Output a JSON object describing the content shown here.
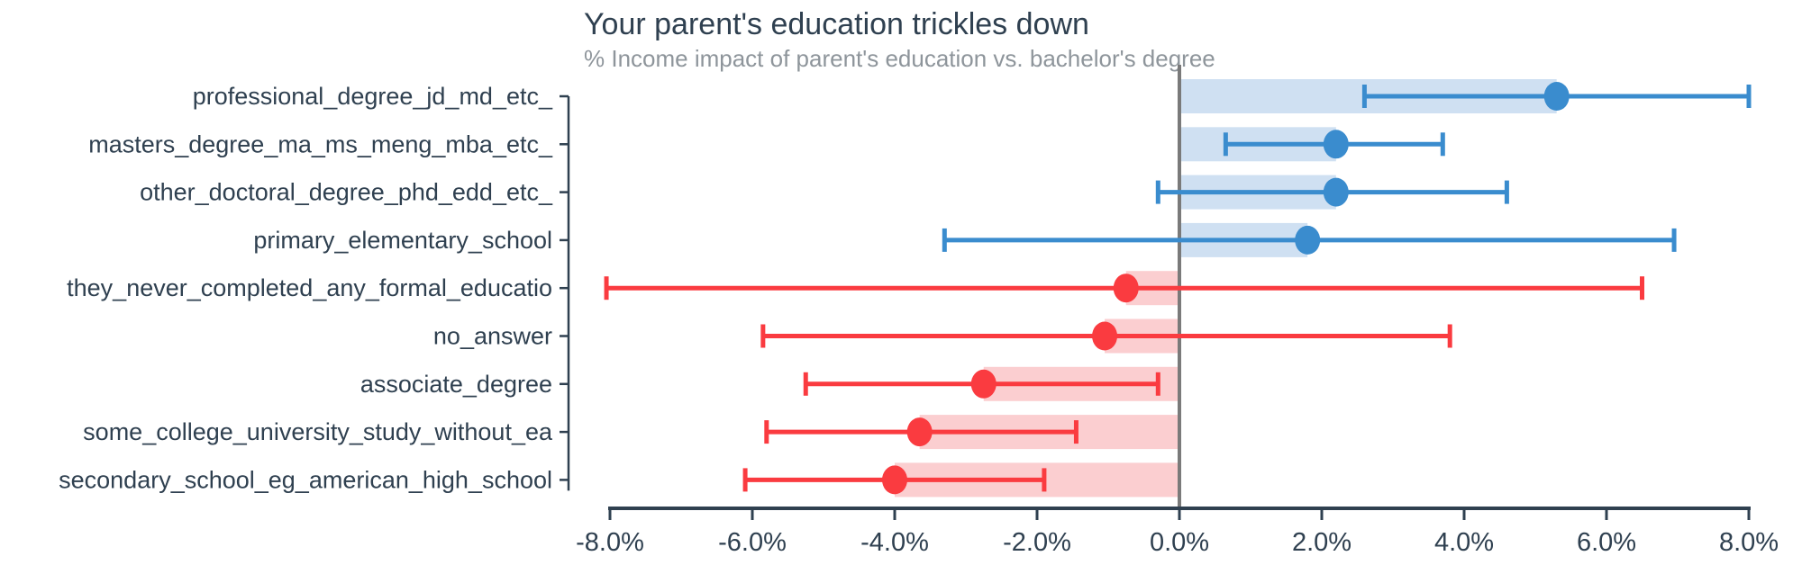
{
  "title": "Your parent's education trickles down",
  "subtitle": "% Income impact of parent's education vs. bachelor's degree",
  "colors": {
    "positive_marker": "#3a8cce",
    "positive_bar": "#cfe0f2",
    "negative_marker": "#fa3b40",
    "negative_bar": "#fbced0",
    "axis": "#2f4050",
    "title_text": "#2f4050",
    "subtitle_text": "#8e959b",
    "zero_line": "#7a7a7a"
  },
  "chart_data": {
    "type": "bar",
    "orientation": "horizontal",
    "title": "Your parent's education trickles down",
    "subtitle": "% Income impact of parent's education vs. bachelor's degree",
    "xlabel": "",
    "ylabel": "",
    "xlim": [
      -8,
      8
    ],
    "grid": false,
    "legend": "none",
    "x_tick_labels": [
      "-8.0%",
      "-6.0%",
      "-4.0%",
      "-2.0%",
      "0.0%",
      "2.0%",
      "4.0%",
      "6.0%",
      "8.0%"
    ],
    "x_tick_values": [
      -8,
      -6,
      -4,
      -2,
      0,
      2,
      4,
      6,
      8
    ],
    "categories": [
      "professional_degree_jd_md_etc_",
      "masters_degree_ma_ms_meng_mba_etc_",
      "other_doctoral_degree_phd_edd_etc_",
      "primary_elementary_school",
      "they_never_completed_any_formal_educatio",
      "no_answer",
      "associate_degree",
      "some_college_university_study_without_ea",
      "secondary_school_eg_american_high_school"
    ],
    "series": [
      {
        "name": "estimate_pct",
        "values": [
          5.3,
          2.2,
          2.2,
          1.8,
          -0.75,
          -1.05,
          -2.75,
          -3.65,
          -4.0
        ]
      },
      {
        "name": "ci_low_pct",
        "values": [
          2.6,
          0.65,
          -0.3,
          -3.3,
          -8.05,
          -5.85,
          -5.25,
          -5.8,
          -6.1
        ]
      },
      {
        "name": "ci_high_pct",
        "values": [
          8.0,
          3.7,
          4.6,
          6.95,
          6.5,
          3.8,
          -0.3,
          -1.45,
          -1.9
        ]
      }
    ],
    "point_colors": [
      "blue",
      "blue",
      "blue",
      "blue",
      "red",
      "red",
      "red",
      "red",
      "red"
    ]
  }
}
